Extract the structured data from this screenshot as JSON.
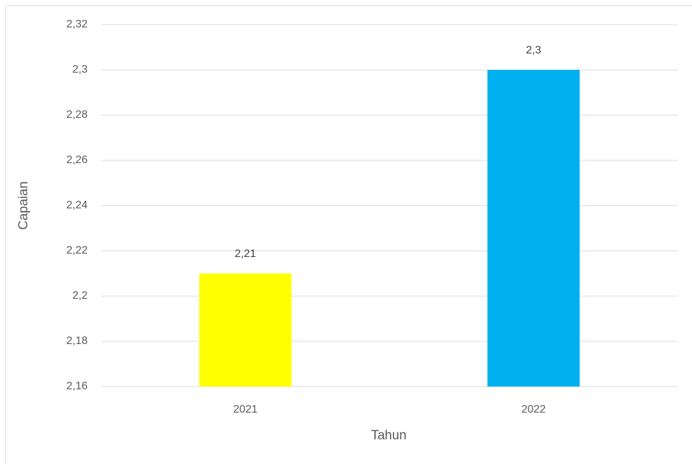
{
  "chart_data": {
    "type": "bar",
    "x_label": "Tahun",
    "y_label": "Capaian",
    "categories": [
      "2021",
      "2022"
    ],
    "values": [
      2.21,
      2.3
    ],
    "value_labels": [
      "2,21",
      "2,3"
    ],
    "colors": [
      "#ffff00",
      "#00b0f0"
    ],
    "ylim": [
      2.16,
      2.32
    ],
    "yticks": [
      {
        "value": 2.16,
        "label": "2,16"
      },
      {
        "value": 2.18,
        "label": "2,18"
      },
      {
        "value": 2.2,
        "label": "2,2"
      },
      {
        "value": 2.22,
        "label": "2,22"
      },
      {
        "value": 2.24,
        "label": "2,24"
      },
      {
        "value": 2.26,
        "label": "2,26"
      },
      {
        "value": 2.28,
        "label": "2,28"
      },
      {
        "value": 2.3,
        "label": "2,3"
      },
      {
        "value": 2.32,
        "label": "2,32"
      }
    ],
    "grid": true
  }
}
